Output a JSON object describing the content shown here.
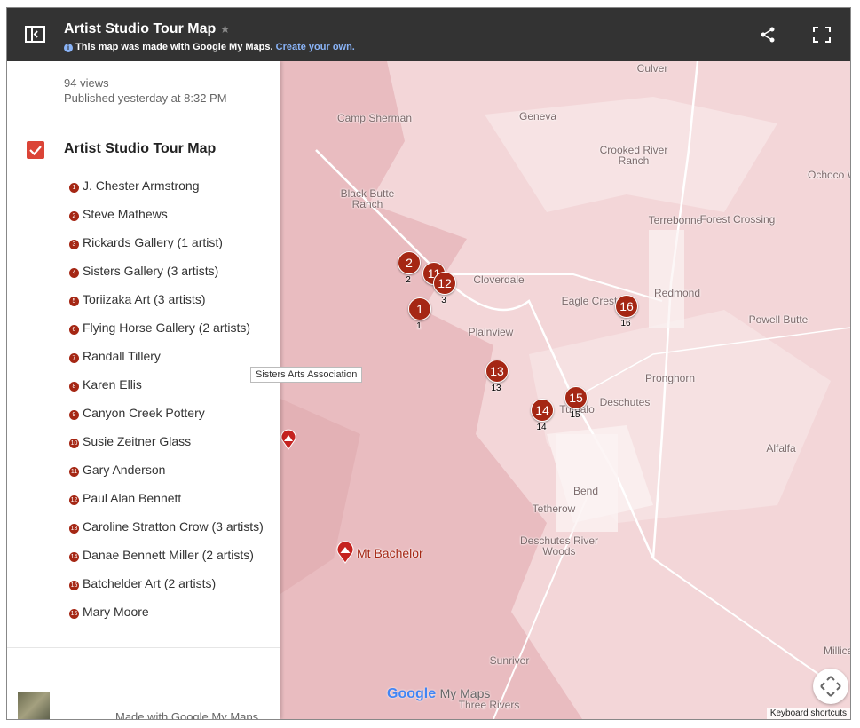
{
  "header": {
    "title": "Artist Studio Tour Map",
    "notice": "This map was made with Google My Maps.",
    "link": "Create your own."
  },
  "sidebar": {
    "views": "94 views",
    "published": "Published yesterday at 8:32 PM",
    "layer_title": "Artist Studio Tour Map",
    "items": [
      {
        "number": 1,
        "name": "J. Chester Armstrong"
      },
      {
        "number": 2,
        "name": "Steve Mathews"
      },
      {
        "number": 3,
        "name": "Rickards Gallery (1 artist)"
      },
      {
        "number": 4,
        "name": "Sisters Gallery (3 artists)"
      },
      {
        "number": 5,
        "name": "Toriizaka Art (3 artists)"
      },
      {
        "number": 6,
        "name": "Flying Horse Gallery (2 artists)"
      },
      {
        "number": 7,
        "name": "Randall Tillery"
      },
      {
        "number": 8,
        "name": "Karen Ellis"
      },
      {
        "number": 9,
        "name": "Canyon Creek Pottery"
      },
      {
        "number": 10,
        "name": "Susie Zeitner Glass"
      },
      {
        "number": 11,
        "name": "Gary Anderson"
      },
      {
        "number": 12,
        "name": "Paul Alan Bennett"
      },
      {
        "number": 13,
        "name": "Caroline Stratton Crow (3 artists)"
      },
      {
        "number": 14,
        "name": "Danae Bennett Miller (2 artists)"
      },
      {
        "number": 15,
        "name": "Batchelder Art (2 artists)"
      },
      {
        "number": 16,
        "name": "Mary Moore"
      }
    ],
    "footer": "Made with Google My Maps"
  },
  "tooltip": "Sisters Arts Association",
  "map": {
    "places": [
      "Culver",
      "Camp Sherman",
      "Geneva",
      "Crooked River Ranch",
      "Ochoco W",
      "Black Butte Ranch",
      "Terrebonne",
      "Forest Crossing",
      "Cloverdale",
      "Eagle Crest",
      "Redmond",
      "Powell Butte",
      "Plainview",
      "Pronghorn",
      "Deschutes",
      "Tumalo",
      "Alfalfa",
      "Bend",
      "Tetherow",
      "Deschutes River Woods",
      "Millican",
      "Sunriver",
      "Three Rivers"
    ],
    "markers": [
      {
        "label": 2,
        "caption": 2
      },
      {
        "label": 1,
        "caption": 1
      },
      {
        "label": 11
      },
      {
        "label": 12,
        "caption": 3
      },
      {
        "label": 16,
        "caption": 16
      },
      {
        "label": 13,
        "caption": 13
      },
      {
        "label": 15,
        "caption": 15
      },
      {
        "label": 14,
        "caption": 14
      }
    ],
    "peak": "Mt Bachelor",
    "logo": "Google",
    "logo_suffix": "My Maps",
    "shortcuts": "Keyboard shortcuts"
  }
}
